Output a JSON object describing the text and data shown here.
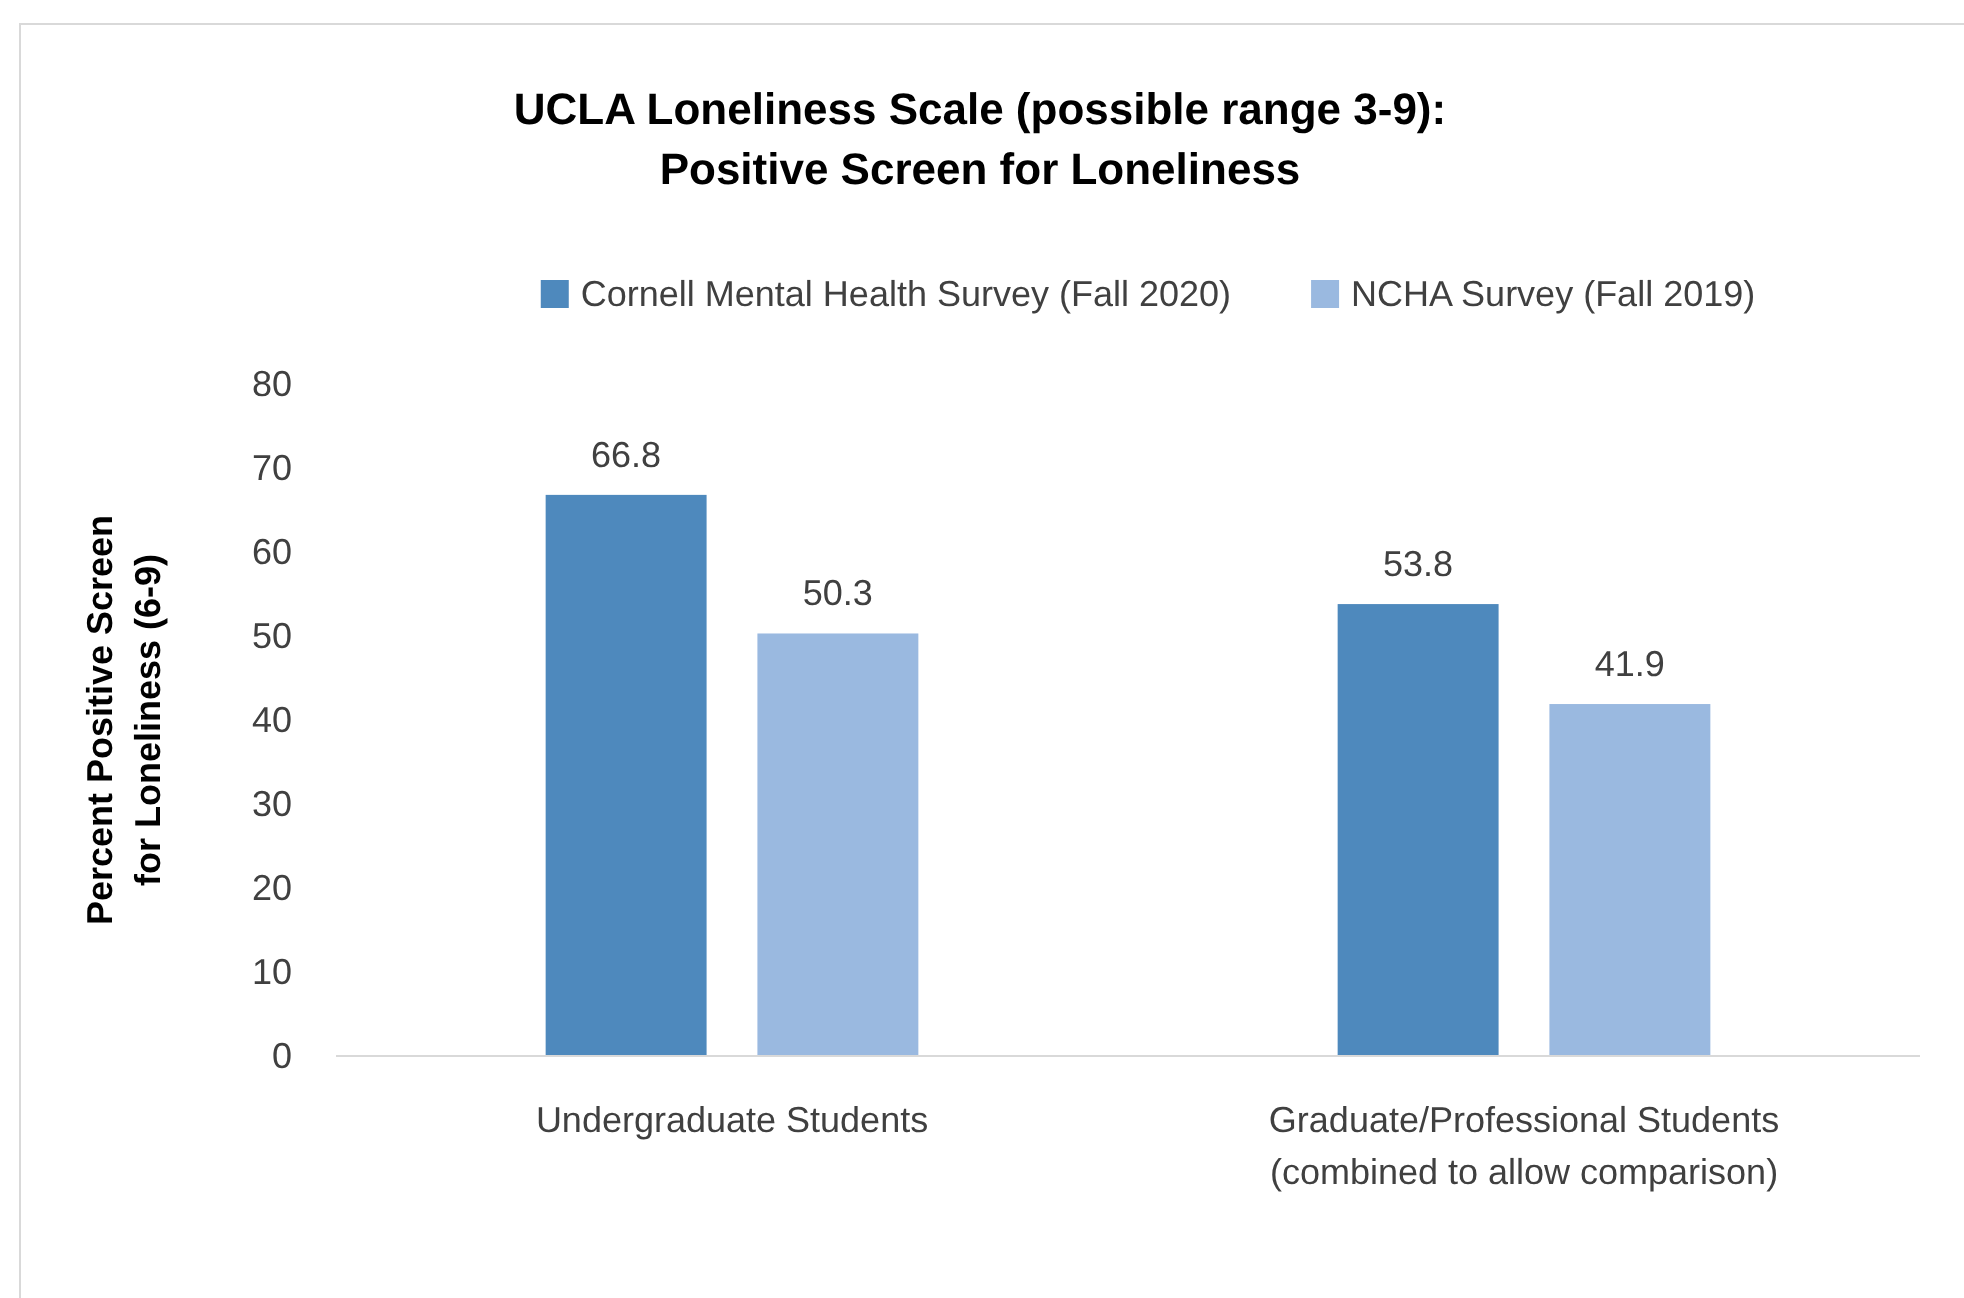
{
  "chart_data": {
    "type": "bar",
    "title": "UCLA Loneliness Scale (possible range 3-9):\nPositive Screen for Loneliness",
    "ylabel": "Percent Positive Screen\nfor Loneliness (6-9)",
    "categories": [
      "Undergraduate Students",
      "Graduate/Professional Students\n(combined to allow comparison)"
    ],
    "series": [
      {
        "name": "Cornell Mental Health Survey (Fall 2020)",
        "color": "#4e89bd",
        "values": [
          66.8,
          53.8
        ]
      },
      {
        "name": "NCHA Survey (Fall 2019)",
        "color": "#9ab9e0",
        "values": [
          50.3,
          41.9
        ]
      }
    ],
    "ylim": [
      0,
      80
    ],
    "yticks": [
      0,
      10,
      20,
      30,
      40,
      50,
      60,
      70,
      80
    ],
    "grid": false,
    "legend": "top",
    "data_labels": true
  }
}
